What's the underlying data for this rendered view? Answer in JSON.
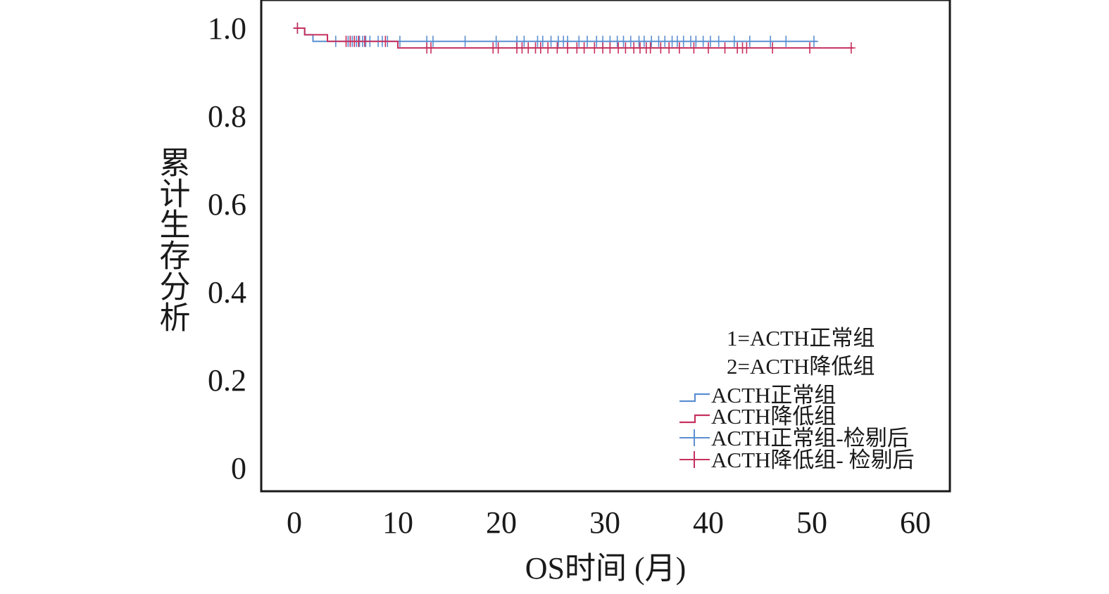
{
  "chart_data": {
    "type": "line",
    "subtype": "kaplan-meier",
    "xlabel": "OS时间 (月)",
    "ylabel": "累计生存分析",
    "xlim": [
      0,
      60
    ],
    "ylim": [
      0,
      1.0
    ],
    "x_ticks": [
      0,
      10,
      20,
      30,
      40,
      50,
      60
    ],
    "y_ticks": [
      0,
      0.2,
      0.4,
      0.6,
      0.8,
      1.0
    ],
    "y_tick_labels": [
      "0",
      "0.2",
      "0.4",
      "0.6",
      "0.8",
      "1.0"
    ],
    "grid": false,
    "legend_position": "bottom-right",
    "group_codes": [
      "1=ACTH正常组",
      "2=ACTH降低组"
    ],
    "series": [
      {
        "name": "ACTH正常组",
        "censored_label": "ACTH正常组-检剔后",
        "color": "#5b8fd1",
        "steps": [
          [
            0,
            1.0
          ],
          [
            1.0,
            0.985
          ],
          [
            1.8,
            0.97
          ],
          [
            50.5,
            0.97
          ]
        ],
        "censored": [
          0.3,
          4.0,
          5.2,
          5.6,
          6.0,
          6.3,
          6.6,
          6.9,
          7.3,
          8.1,
          8.5,
          9.0,
          10.2,
          12.8,
          13.4,
          16.5,
          19.5,
          21.5,
          22.2,
          23.5,
          24.0,
          24.8,
          25.5,
          26.0,
          26.4,
          27.5,
          28.3,
          29.2,
          29.8,
          30.5,
          31.2,
          31.8,
          32.5,
          33.3,
          33.8,
          34.5,
          35.2,
          35.8,
          36.5,
          37.0,
          37.6,
          38.3,
          38.8,
          39.5,
          40.2,
          41.0,
          42.5,
          44.0,
          46.0,
          47.5,
          50.2
        ]
      },
      {
        "name": "ACTH降低组",
        "censored_label": "ACTH降低组- 检剔后",
        "color": "#c7305e",
        "steps": [
          [
            0,
            1.0
          ],
          [
            1.0,
            0.985
          ],
          [
            3.2,
            0.97
          ],
          [
            10.0,
            0.955
          ],
          [
            54.0,
            0.955
          ]
        ],
        "censored": [
          0.3,
          5.0,
          5.4,
          5.8,
          6.2,
          6.8,
          8.8,
          12.8,
          13.2,
          19.2,
          19.7,
          21.5,
          22.0,
          22.6,
          23.3,
          23.8,
          24.5,
          25.4,
          26.4,
          27.3,
          28.0,
          29.0,
          29.8,
          30.5,
          31.3,
          32.0,
          32.8,
          33.4,
          34.0,
          34.4,
          35.4,
          36.2,
          37.2,
          38.6,
          40.0,
          41.6,
          42.8,
          43.3,
          43.7,
          46.2,
          49.8,
          53.8
        ]
      }
    ]
  }
}
